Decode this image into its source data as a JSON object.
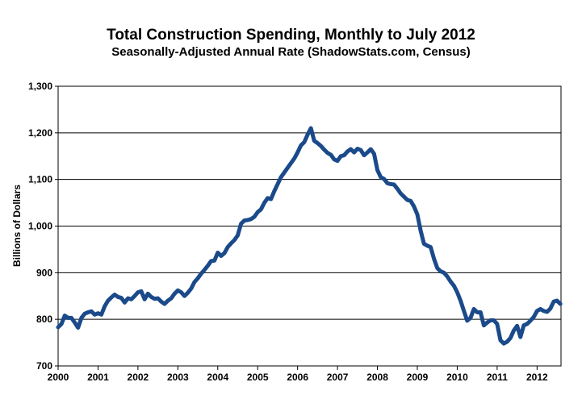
{
  "chart_data": {
    "type": "line",
    "title": "Total Construction Spending, Monthly to July 2012",
    "subtitle": "Seasonally-Adjusted Annual Rate (ShadowStats.com, Census)",
    "xlabel": "",
    "ylabel": "Billions of Dollars",
    "ylim": [
      700,
      1300
    ],
    "yticks": [
      700,
      800,
      900,
      1000,
      1100,
      1200,
      1300
    ],
    "ytick_labels": [
      "700",
      "800",
      "900",
      "1,000",
      "1,100",
      "1,200",
      "1,300"
    ],
    "xlim": [
      2000,
      2012.6
    ],
    "xticks": [
      2000,
      2001,
      2002,
      2003,
      2004,
      2005,
      2006,
      2007,
      2008,
      2009,
      2010,
      2011,
      2012
    ],
    "xtick_labels": [
      "2000",
      "2001",
      "2002",
      "2003",
      "2004",
      "2005",
      "2006",
      "2007",
      "2008",
      "2009",
      "2010",
      "2011",
      "2012"
    ],
    "grid": true,
    "line_color": "#1b4a8a",
    "series": [
      {
        "name": "Total Construction Spending",
        "start": "2000-01",
        "values": [
          783,
          790,
          808,
          803,
          803,
          793,
          782,
          803,
          812,
          815,
          817,
          810,
          813,
          810,
          828,
          840,
          847,
          853,
          848,
          846,
          836,
          845,
          843,
          850,
          858,
          860,
          843,
          855,
          848,
          844,
          845,
          838,
          833,
          840,
          845,
          855,
          862,
          858,
          850,
          857,
          866,
          880,
          888,
          898,
          906,
          915,
          925,
          926,
          943,
          936,
          942,
          955,
          963,
          970,
          980,
          1005,
          1012,
          1013,
          1015,
          1020,
          1030,
          1036,
          1050,
          1060,
          1058,
          1075,
          1090,
          1105,
          1115,
          1125,
          1135,
          1145,
          1158,
          1173,
          1180,
          1196,
          1210,
          1183,
          1178,
          1172,
          1164,
          1157,
          1153,
          1143,
          1140,
          1150,
          1152,
          1160,
          1165,
          1158,
          1166,
          1163,
          1152,
          1158,
          1165,
          1155,
          1120,
          1105,
          1101,
          1092,
          1090,
          1089,
          1080,
          1070,
          1063,
          1056,
          1054,
          1042,
          1025,
          990,
          962,
          958,
          955,
          930,
          910,
          903,
          900,
          892,
          881,
          872,
          858,
          840,
          818,
          797,
          803,
          822,
          815,
          815,
          787,
          793,
          798,
          798,
          790,
          755,
          748,
          752,
          760,
          776,
          786,
          762,
          787,
          790,
          797,
          805,
          818,
          822,
          818,
          816,
          823,
          838,
          840,
          833
        ]
      }
    ]
  }
}
